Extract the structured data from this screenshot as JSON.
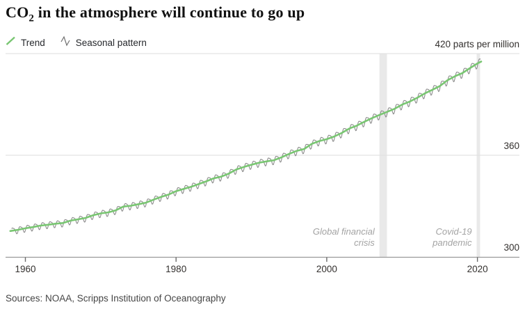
{
  "title": {
    "prefix": "CO",
    "subscript": "2",
    "rest": " in the atmosphere will continue to go up"
  },
  "legend": {
    "items": [
      {
        "label": "Trend",
        "icon": "trend-line-icon"
      },
      {
        "label": "Seasonal pattern",
        "icon": "seasonal-zigzag-icon"
      }
    ]
  },
  "unit_label": "420 parts per million",
  "footer": {
    "sources": "Sources: NOAA, Scripps Institution of Oceanography"
  },
  "chart_data": {
    "type": "line",
    "title": "CO2 in the atmosphere will continue to go up",
    "ylabel": "parts per million",
    "x_ticks": [
      "1960",
      "1980",
      "2000",
      "2020"
    ],
    "x_tick_years": [
      1960,
      1980,
      2000,
      2020
    ],
    "y_gridlines": [
      420,
      360,
      300
    ],
    "xlim": [
      1957.4,
      2025.6
    ],
    "ylim": [
      300,
      420
    ],
    "legend_position": "top-left",
    "colors": {
      "trend": "#79c672",
      "seasonal": "#8c8c8c",
      "grid": "#dedede",
      "axis": "#9a9a9a",
      "tick": "#6b6b6b",
      "band": "#e9e9e9",
      "annotation": "#a3a3a3"
    },
    "bands": [
      {
        "label": "Global financial crisis",
        "from_year": 2007.0,
        "to_year": 2008.0
      },
      {
        "label": "Covid-19 pandemic",
        "from_year": 2019.9,
        "to_year": 2020.35
      }
    ],
    "annotations": [
      {
        "lines": [
          "Global financial",
          "crisis"
        ],
        "band_index": 0
      },
      {
        "lines": [
          "Covid-19",
          "pandemic"
        ],
        "band_index": 1
      }
    ],
    "seasonal": {
      "amplitude_ppm_start": 2.1,
      "amplitude_ppm_end": 2.7,
      "peak_month": "May",
      "trough_month": "October",
      "derivation": "trend plus annual seasonal cycle"
    },
    "series": [
      {
        "name": "Trend",
        "points": [
          [
            1958,
            315.3
          ],
          [
            1959,
            316.0
          ],
          [
            1960,
            316.9
          ],
          [
            1961,
            317.6
          ],
          [
            1962,
            318.5
          ],
          [
            1963,
            319.0
          ],
          [
            1964,
            319.6
          ],
          [
            1965,
            320.0
          ],
          [
            1966,
            321.4
          ],
          [
            1967,
            322.2
          ],
          [
            1968,
            323.0
          ],
          [
            1969,
            324.6
          ],
          [
            1970,
            325.7
          ],
          [
            1971,
            326.3
          ],
          [
            1972,
            327.5
          ],
          [
            1973,
            329.7
          ],
          [
            1974,
            330.2
          ],
          [
            1975,
            331.1
          ],
          [
            1976,
            332.0
          ],
          [
            1977,
            333.8
          ],
          [
            1978,
            335.4
          ],
          [
            1979,
            336.8
          ],
          [
            1980,
            338.8
          ],
          [
            1981,
            340.1
          ],
          [
            1982,
            341.4
          ],
          [
            1983,
            343.0
          ],
          [
            1984,
            344.6
          ],
          [
            1985,
            346.4
          ],
          [
            1986,
            347.4
          ],
          [
            1987,
            349.2
          ],
          [
            1988,
            351.6
          ],
          [
            1989,
            353.1
          ],
          [
            1990,
            354.4
          ],
          [
            1991,
            355.6
          ],
          [
            1992,
            356.4
          ],
          [
            1993,
            357.1
          ],
          [
            1994,
            358.8
          ],
          [
            1995,
            360.8
          ],
          [
            1996,
            362.6
          ],
          [
            1997,
            363.7
          ],
          [
            1998,
            366.7
          ],
          [
            1999,
            368.4
          ],
          [
            2000,
            369.5
          ],
          [
            2001,
            371.1
          ],
          [
            2002,
            373.2
          ],
          [
            2003,
            375.8
          ],
          [
            2004,
            377.5
          ],
          [
            2005,
            379.8
          ],
          [
            2006,
            381.9
          ],
          [
            2007,
            383.8
          ],
          [
            2008,
            385.6
          ],
          [
            2009,
            387.4
          ],
          [
            2010,
            389.9
          ],
          [
            2011,
            391.7
          ],
          [
            2012,
            393.9
          ],
          [
            2013,
            396.5
          ],
          [
            2014,
            398.6
          ],
          [
            2015,
            400.8
          ],
          [
            2016,
            404.2
          ],
          [
            2017,
            406.6
          ],
          [
            2018,
            408.5
          ],
          [
            2019,
            411.4
          ],
          [
            2020,
            414.2
          ],
          [
            2020.5,
            415.3
          ]
        ]
      },
      {
        "name": "Seasonal pattern",
        "derivation": "trend plus seasonal cycle, monthly samples 1958.17 to 2020.42"
      }
    ]
  }
}
